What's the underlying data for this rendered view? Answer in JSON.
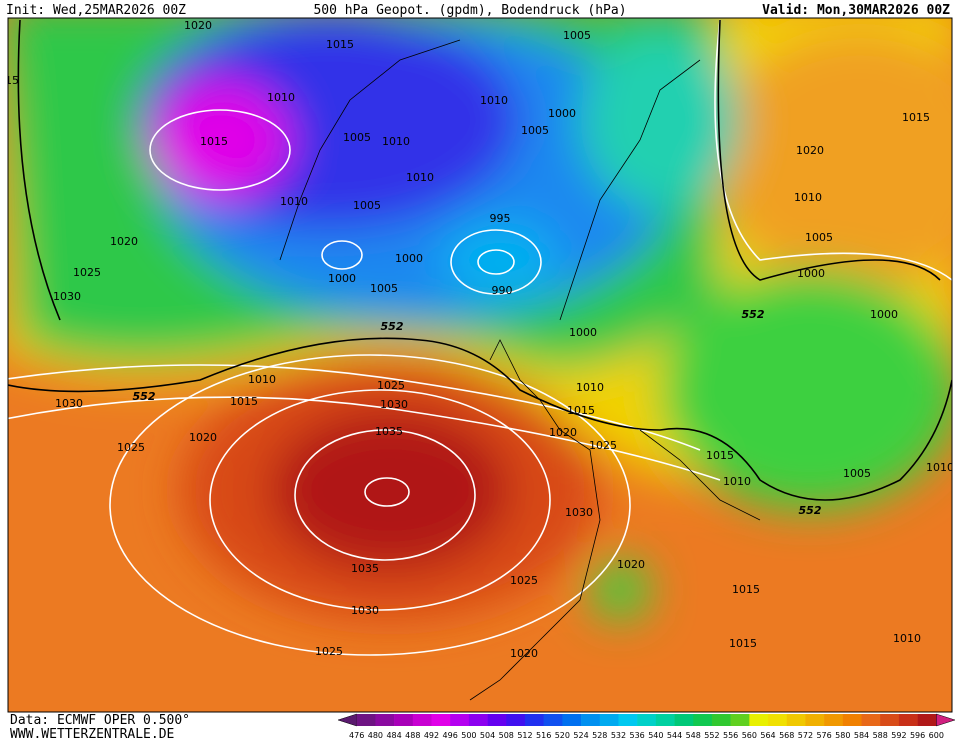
{
  "header": {
    "init": "Init: Wed,25MAR2026 00Z",
    "title": "500 hPa Geopot. (gpdm), Bodendruck (hPa)",
    "valid": "Valid: Mon,30MAR2026 00Z"
  },
  "footer": {
    "source": "Data: ECMWF OPER 0.500°",
    "website": "WWW.WETTERZENTRALE.DE"
  },
  "isobar_labels": [
    "1020",
    "1015",
    "1005",
    "15",
    "1010",
    "1010",
    "1000",
    "1005",
    "1015",
    "1005",
    "1010",
    "1010",
    "1010",
    "1005",
    "995",
    "1020",
    "1000",
    "1000",
    "990",
    "1025",
    "1030",
    "1005",
    "1000",
    "1010",
    "1025",
    "1030",
    "1015",
    "1030",
    "1010",
    "1015",
    "1020",
    "1025",
    "1020",
    "1025",
    "1035",
    "1015",
    "1010",
    "1030",
    "1035",
    "1025",
    "1020",
    "1030",
    "1015",
    "1025",
    "1020",
    "1015",
    "1010",
    "1015",
    "1020",
    "1010",
    "1005",
    "1000",
    "1000",
    "1005",
    "1010"
  ],
  "geopotential_labels": [
    "552",
    "552",
    "552",
    "552"
  ],
  "colorbar": {
    "labels": [
      "476",
      "480",
      "484",
      "488",
      "492",
      "496",
      "500",
      "504",
      "508",
      "512",
      "516",
      "520",
      "524",
      "528",
      "532",
      "536",
      "540",
      "544",
      "548",
      "552",
      "556",
      "560",
      "564",
      "568",
      "572",
      "576",
      "580",
      "584",
      "588",
      "592",
      "596",
      "600"
    ],
    "colors": [
      "#5a1a6e",
      "#6e1483",
      "#8a0aa0",
      "#a800b8",
      "#c800d2",
      "#e000e8",
      "#b400f0",
      "#8c00f0",
      "#6400f0",
      "#4010f0",
      "#2030f0",
      "#1050f0",
      "#0070f0",
      "#0090f0",
      "#00aaf0",
      "#00c8f0",
      "#00d0c8",
      "#00d0a0",
      "#00c878",
      "#10c850",
      "#30c830",
      "#60d020",
      "#e8f000",
      "#f0e000",
      "#f0c800",
      "#f0b000",
      "#f09800",
      "#f08000",
      "#e86818",
      "#d84c18",
      "#c83018",
      "#b01818",
      "#d02080"
    ]
  }
}
